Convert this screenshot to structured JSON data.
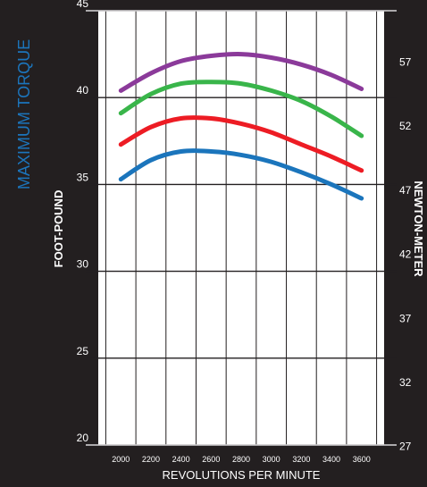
{
  "chart_data": {
    "type": "line",
    "title": "MAXIMUM TORQUE",
    "xlabel": "REVOLUTIONS PER MINUTE",
    "ylabel": "FOOT-POUND",
    "y2label": "NEWTON-METER",
    "xlim": [
      1850,
      3750
    ],
    "ylim": [
      20,
      45
    ],
    "x_ticks": [
      2000,
      2200,
      2400,
      2600,
      2800,
      3000,
      3200,
      3400,
      3600
    ],
    "y_ticks": [
      20,
      25,
      30,
      35,
      40,
      45
    ],
    "y2_ticks": [
      27,
      32,
      37,
      42,
      47,
      52,
      57
    ],
    "grid": true,
    "colors": {
      "background": "#231f20",
      "plot_area": "#ffffff",
      "grid": "#231f20",
      "title": "#1c75bc",
      "text": "#ffffff"
    },
    "x": [
      2000,
      2200,
      2400,
      2600,
      2800,
      3000,
      3200,
      3400,
      3600
    ],
    "series": [
      {
        "color": "#8b3a9a",
        "values": [
          40.4,
          41.4,
          42.1,
          42.4,
          42.5,
          42.3,
          41.9,
          41.3,
          40.5
        ]
      },
      {
        "color": "#39b54a",
        "values": [
          39.1,
          40.2,
          40.8,
          40.9,
          40.8,
          40.4,
          39.8,
          38.9,
          37.8
        ]
      },
      {
        "color": "#ed1c24",
        "values": [
          37.3,
          38.3,
          38.8,
          38.8,
          38.5,
          38.0,
          37.3,
          36.6,
          35.8
        ]
      },
      {
        "color": "#1b75bc",
        "values": [
          35.3,
          36.4,
          36.9,
          36.9,
          36.7,
          36.3,
          35.7,
          35.0,
          34.2
        ]
      }
    ]
  }
}
